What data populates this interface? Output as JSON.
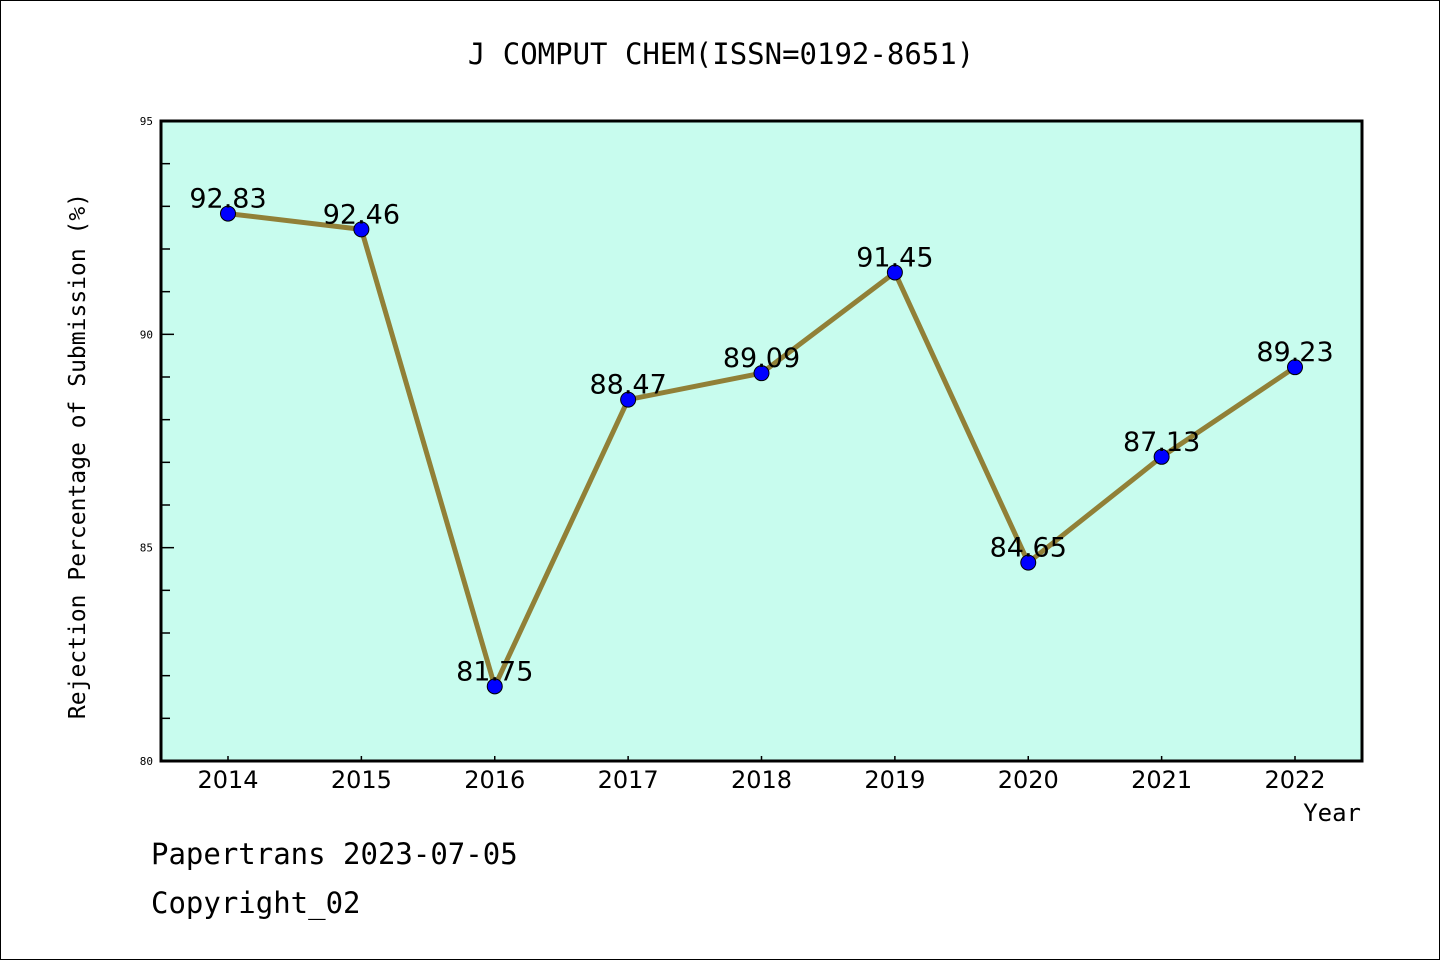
{
  "chart_data": {
    "type": "line",
    "title": "J COMPUT CHEM(ISSN=0192-8651)",
    "xlabel": "Year",
    "ylabel": "Rejection Percentage of Submission (%)",
    "categories": [
      "2014",
      "2015",
      "2016",
      "2017",
      "2018",
      "2019",
      "2020",
      "2021",
      "2022"
    ],
    "values": [
      92.83,
      92.46,
      81.75,
      88.47,
      89.09,
      91.45,
      84.65,
      87.13,
      89.23
    ],
    "data_labels": [
      "92.83",
      "92.46",
      "81.75",
      "88.47",
      "89.09",
      "91.45",
      "84.65",
      "87.13",
      "89.23"
    ],
    "ylim": [
      80,
      95
    ],
    "yticks": [
      "80",
      "85",
      "90",
      "95"
    ],
    "grid": false,
    "colors": {
      "plot_bg": "#c8fcee",
      "line": "#918037",
      "marker": "#0000ff"
    }
  },
  "footer": {
    "line1": "Papertrans 2023-07-05",
    "line2": "Copyright_02"
  }
}
